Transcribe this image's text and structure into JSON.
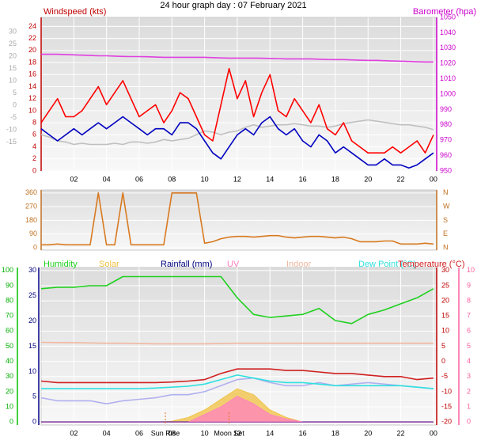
{
  "chart_data": [
    {
      "type": "line",
      "title": "24 hour graph day : 07 February 2021",
      "y_label": "Windspeed (kts)",
      "y2_label": "Barometer (hpa)",
      "x": [
        0,
        0.5,
        1,
        1.5,
        2,
        2.5,
        3,
        3.5,
        4,
        4.5,
        5,
        5.5,
        6,
        6.5,
        7,
        7.5,
        8,
        8.5,
        9,
        9.5,
        10,
        10.5,
        11,
        11.5,
        12,
        12.5,
        13,
        13.5,
        14,
        14.5,
        15,
        15.5,
        16,
        16.5,
        17,
        17.5,
        18,
        18.5,
        19,
        19.5,
        20,
        20.5,
        21,
        21.5,
        22,
        22.5,
        23,
        23.5,
        24
      ],
      "xlim": [
        0,
        24.2
      ],
      "xticks": [
        {
          "value": 2,
          "label": "02"
        },
        {
          "value": 4,
          "label": "04"
        },
        {
          "value": 6,
          "label": "06"
        },
        {
          "value": 8,
          "label": "08"
        },
        10,
        12,
        14,
        16,
        18,
        20,
        22,
        {
          "value": 24,
          "label": "00"
        }
      ],
      "ylim": [
        0,
        25.5
      ],
      "yticks": [
        0,
        2,
        4,
        6,
        8,
        10,
        12,
        14,
        16,
        18,
        20,
        22,
        24
      ],
      "y2lim": [
        950,
        1050
      ],
      "y2ticks": [
        950,
        960,
        970,
        980,
        990,
        1000,
        1010,
        1020,
        1030,
        1040,
        1050
      ],
      "y3lim": [
        -26.8,
        35.8
      ],
      "y3ticks": [
        -15,
        -10,
        -5,
        0,
        5,
        10,
        15,
        20,
        25,
        30
      ],
      "grid": true,
      "series": [
        {
          "color": "#c0c0c0",
          "axis": "y3",
          "values": [
            -12,
            -13,
            -14.5,
            -15,
            -16,
            -15.5,
            -16,
            -16,
            -16,
            -15.5,
            -16,
            -15,
            -15,
            -15.5,
            -15,
            -14,
            -14.5,
            -14,
            -13.5,
            -12,
            -10.5,
            -11,
            -12,
            -11,
            -10.5,
            -9,
            -8,
            -9,
            -8.5,
            -8,
            -8,
            -7.5,
            -8,
            -8.5,
            -8.5,
            -9,
            -8.5,
            -7.5,
            -7,
            -6.5,
            -6,
            -6.5,
            -7,
            -7.5,
            -8,
            -8,
            -8.5,
            -9,
            -10
          ]
        },
        {
          "color": "#e040e0",
          "axis": "y2",
          "values": [
            1026,
            1026,
            1026,
            1025.8,
            1025.6,
            1025.4,
            1025.2,
            1025,
            1025,
            1024.8,
            1024.6,
            1024.5,
            1024.5,
            1024.4,
            1024.2,
            1024,
            1024,
            1024,
            1024,
            1024,
            1024,
            1023.8,
            1023.6,
            1023.5,
            1023.5,
            1023.5,
            1023.5,
            1023.4,
            1023.3,
            1023.2,
            1023,
            1023,
            1023,
            1023,
            1022.8,
            1022.6,
            1022.5,
            1022.5,
            1022.3,
            1022.1,
            1022,
            1022,
            1021.8,
            1021.6,
            1021.5,
            1021.3,
            1021.1,
            1021,
            1021
          ]
        },
        {
          "color": "#ff0000",
          "axis": "y",
          "values": [
            8,
            10,
            12,
            9,
            9,
            10,
            12,
            14,
            11,
            13,
            15,
            12,
            9,
            10,
            11,
            8,
            10,
            13,
            12,
            9,
            6,
            5,
            11,
            17,
            12,
            15,
            9,
            13,
            16,
            10,
            9,
            12,
            10,
            8,
            11,
            7,
            6,
            8,
            5,
            4,
            3,
            3,
            3,
            4,
            3,
            4,
            5,
            3,
            6
          ]
        },
        {
          "color": "#0000c0",
          "axis": "y",
          "values": [
            7,
            6,
            5,
            6,
            7,
            6,
            7,
            8,
            7,
            8,
            9,
            8,
            7,
            6,
            7,
            7,
            6,
            8,
            8,
            7,
            5,
            3,
            2,
            4,
            6,
            7,
            6,
            8,
            9,
            7,
            6,
            7,
            5,
            4,
            6,
            5,
            3,
            4,
            3,
            2,
            1,
            1,
            2,
            1,
            1,
            0.5,
            1,
            2,
            3
          ]
        }
      ]
    },
    {
      "type": "line",
      "x": [
        0,
        0.5,
        1,
        1.5,
        2,
        2.5,
        3,
        3.5,
        4,
        4.5,
        5,
        5.5,
        6,
        6.5,
        7,
        7.5,
        8,
        8.5,
        9,
        9.5,
        10,
        10.5,
        11,
        11.5,
        12,
        12.5,
        13,
        13.5,
        14,
        14.5,
        15,
        15.5,
        16,
        16.5,
        17,
        17.5,
        18,
        18.5,
        19,
        19.5,
        20,
        20.5,
        21,
        21.5,
        22,
        22.5,
        23,
        23.5,
        24
      ],
      "xlim": [
        0,
        24.2
      ],
      "ylim": [
        -15,
        380
      ],
      "yticks": [
        0,
        90,
        180,
        270,
        360
      ],
      "y2lim": [
        -15,
        380
      ],
      "y2ticks": [
        {
          "value": 0,
          "label": "N"
        },
        {
          "value": 90,
          "label": "E"
        },
        {
          "value": 180,
          "label": "S"
        },
        {
          "value": 270,
          "label": "W"
        },
        {
          "value": 360,
          "label": "N"
        }
      ],
      "grid": true,
      "series": [
        {
          "color": "#d87a20",
          "axis": "y",
          "values": [
            20,
            20,
            25,
            20,
            20,
            20,
            20,
            360,
            20,
            20,
            360,
            20,
            20,
            20,
            20,
            20,
            360,
            360,
            360,
            360,
            30,
            40,
            60,
            70,
            75,
            75,
            70,
            75,
            80,
            80,
            70,
            65,
            70,
            75,
            75,
            70,
            65,
            70,
            60,
            40,
            40,
            40,
            45,
            45,
            25,
            25,
            25,
            30,
            25
          ]
        }
      ]
    },
    {
      "type": "line",
      "x": [
        0,
        1,
        2,
        3,
        4,
        5,
        6,
        7,
        8,
        9,
        10,
        11,
        12,
        13,
        14,
        15,
        16,
        17,
        18,
        19,
        20,
        21,
        22,
        23,
        24
      ],
      "xlim": [
        0,
        24.2
      ],
      "xticks": [
        {
          "value": 2,
          "label": "02"
        },
        {
          "value": 4,
          "label": "04"
        },
        {
          "value": 6,
          "label": "06"
        },
        {
          "value": 8,
          "label": "08"
        },
        10,
        12,
        14,
        16,
        18,
        20,
        22,
        {
          "value": 24,
          "label": "00"
        }
      ],
      "ylim": [
        -2,
        102
      ],
      "yticks": [
        0,
        10,
        20,
        30,
        40,
        50,
        60,
        70,
        80,
        90,
        100
      ],
      "y2lim": [
        -21,
        31
      ],
      "y2ticks": [
        -20,
        -15,
        -10,
        -5,
        0,
        5,
        10,
        15,
        20,
        25,
        30
      ],
      "y3lim": [
        -0.6,
        30.6
      ],
      "y3ticks": [
        0,
        5,
        10,
        15,
        20,
        25,
        30
      ],
      "y4lim": [
        -0.2,
        10.2
      ],
      "y4ticks": [
        0,
        1,
        2,
        3,
        4,
        5,
        6,
        7,
        8,
        9,
        10
      ],
      "grid": true,
      "annotations": [
        {
          "text": "Sun Rise",
          "x": 7.6
        },
        {
          "text": "Moon Set",
          "x": 11.5
        }
      ],
      "series": [
        {
          "name": "Humidity",
          "color": "#20d020",
          "axis": "y",
          "values": [
            88,
            89,
            89,
            90,
            90,
            96,
            96,
            96,
            96,
            96,
            96,
            96,
            82,
            71,
            69,
            70,
            71,
            75,
            67,
            65,
            71,
            74,
            78,
            82,
            88
          ]
        },
        {
          "name": "Solar",
          "color": "#f0c040",
          "axis": "y",
          "style": "area",
          "values": [
            0,
            0,
            0,
            0,
            0,
            0,
            0,
            0,
            0.5,
            3,
            8,
            15,
            22,
            18,
            8,
            3,
            0,
            0,
            0,
            0,
            0,
            0,
            0,
            0,
            0
          ]
        },
        {
          "name": "Rainfall (mm)",
          "color": "#000080",
          "axis": "y3",
          "values": [
            0,
            0,
            0,
            0,
            0,
            0,
            0,
            0,
            0,
            0,
            0,
            0,
            0,
            0,
            0,
            0,
            0,
            0,
            0,
            0,
            0,
            0,
            0,
            0,
            0
          ]
        },
        {
          "name": "UV",
          "color": "#ff80c0",
          "axis": "y4",
          "style": "area",
          "values": [
            0,
            0,
            0,
            0,
            0,
            0,
            0,
            0,
            0,
            0,
            0.5,
            1,
            1.7,
            1.2,
            0.5,
            0.2,
            0,
            0,
            0,
            0,
            0,
            0,
            0,
            0,
            0
          ]
        },
        {
          "name": "Indoor",
          "color": "#f0b8a0",
          "axis": "y2",
          "values": [
            6.3,
            6.2,
            6.2,
            6.1,
            6,
            6,
            5.9,
            5.8,
            5.8,
            5.8,
            5.8,
            5.9,
            6,
            6,
            6,
            6,
            6,
            6,
            6,
            6,
            6,
            6,
            6,
            6,
            6
          ]
        },
        {
          "color": "#b0b0f0",
          "axis": "y2",
          "values": [
            -12,
            -13,
            -13,
            -13,
            -14,
            -13,
            -12.5,
            -12,
            -11,
            -11,
            -10,
            -8,
            -6,
            -5.5,
            -7,
            -8,
            -8,
            -7,
            -8,
            -7.5,
            -7,
            -7.5,
            -8,
            -8.5,
            -9
          ]
        },
        {
          "name": "Dew Point (°C)",
          "color": "#30e0e0",
          "axis": "y2",
          "values": [
            -9,
            -9,
            -9,
            -9,
            -9,
            -9,
            -9,
            -8.8,
            -8.5,
            -8.2,
            -7.5,
            -6,
            -4.5,
            -5.5,
            -6.5,
            -7,
            -7,
            -7.5,
            -8,
            -8,
            -8,
            -8,
            -8,
            -8.5,
            -9
          ]
        },
        {
          "name": "Temperature (°C)",
          "color": "#d02020",
          "axis": "y2",
          "values": [
            -6.5,
            -7,
            -7,
            -7,
            -7,
            -7,
            -7,
            -7,
            -6.8,
            -6.5,
            -6,
            -4,
            -2.5,
            -2.5,
            -2.5,
            -3,
            -3,
            -3.5,
            -4,
            -4,
            -4.5,
            -5,
            -5,
            -6,
            -5.5
          ]
        }
      ]
    }
  ]
}
